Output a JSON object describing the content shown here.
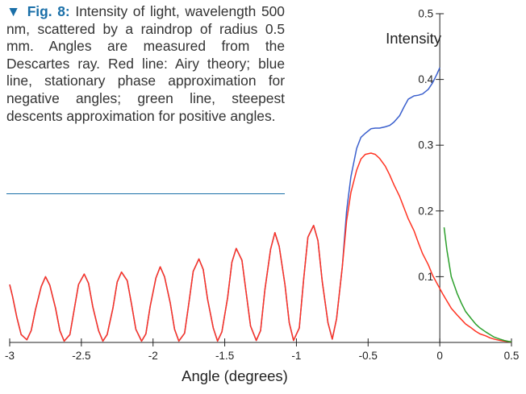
{
  "caption": {
    "marker": "▼",
    "figure_label": "Fig. 8:",
    "text": "Intensity of light, wavelength 500 nm, scattered by a raindrop of radius 0.5 mm. Angles are measured from the Descartes ray. Red line: Airy theory; blue line, stationary phase approximation for negative angles; green line, steepest descents approximation for positive angles."
  },
  "chart_data": {
    "type": "line",
    "title": "",
    "xlabel": "Angle (degrees)",
    "ylabel": "Intensity",
    "xlim": [
      -3,
      0.5
    ],
    "ylim": [
      0,
      0.5
    ],
    "x_ticks": [
      "-3",
      "-2.5",
      "-2",
      "-1.5",
      "-1",
      "-0.5",
      "0",
      "0.5"
    ],
    "y_ticks": [
      "0.1",
      "0.2",
      "0.3",
      "0.4",
      "0.5"
    ],
    "grid": false,
    "legend": "none",
    "series": [
      {
        "color": "#3a5fcd",
        "x": [
          -3.0,
          -2.98,
          -2.95,
          -2.92,
          -2.88,
          -2.85,
          -2.82,
          -2.78,
          -2.75,
          -2.72,
          -2.68,
          -2.65,
          -2.62,
          -2.58,
          -2.55,
          -2.52,
          -2.48,
          -2.45,
          -2.42,
          -2.38,
          -2.35,
          -2.32,
          -2.28,
          -2.25,
          -2.22,
          -2.18,
          -2.15,
          -2.12,
          -2.08,
          -2.05,
          -2.02,
          -1.98,
          -1.95,
          -1.92,
          -1.88,
          -1.85,
          -1.82,
          -1.78,
          -1.75,
          -1.72,
          -1.68,
          -1.65,
          -1.62,
          -1.58,
          -1.55,
          -1.52,
          -1.48,
          -1.45,
          -1.42,
          -1.38,
          -1.35,
          -1.32,
          -1.28,
          -1.25,
          -1.22,
          -1.18,
          -1.15,
          -1.12,
          -1.08,
          -1.05,
          -1.02,
          -0.98,
          -0.95,
          -0.92,
          -0.88,
          -0.85,
          -0.82,
          -0.78,
          -0.75,
          -0.72,
          -0.68,
          -0.65,
          -0.62,
          -0.58,
          -0.55,
          -0.52,
          -0.48,
          -0.45,
          -0.42,
          -0.38,
          -0.35,
          -0.32,
          -0.28,
          -0.25,
          -0.22,
          -0.18,
          -0.15,
          -0.12,
          -0.08,
          -0.05,
          -0.02,
          0.0
        ],
        "values": [
          0.088,
          0.07,
          0.038,
          0.012,
          0.004,
          0.018,
          0.05,
          0.085,
          0.1,
          0.087,
          0.052,
          0.018,
          0.002,
          0.012,
          0.05,
          0.088,
          0.104,
          0.09,
          0.054,
          0.018,
          0.002,
          0.012,
          0.052,
          0.092,
          0.107,
          0.094,
          0.058,
          0.02,
          0.002,
          0.013,
          0.055,
          0.098,
          0.115,
          0.1,
          0.06,
          0.02,
          0.002,
          0.014,
          0.06,
          0.108,
          0.127,
          0.111,
          0.066,
          0.022,
          0.002,
          0.016,
          0.068,
          0.122,
          0.143,
          0.125,
          0.075,
          0.025,
          0.003,
          0.018,
          0.08,
          0.142,
          0.167,
          0.146,
          0.088,
          0.03,
          0.003,
          0.022,
          0.095,
          0.16,
          0.178,
          0.155,
          0.093,
          0.03,
          0.005,
          0.036,
          0.115,
          0.2,
          0.252,
          0.295,
          0.312,
          0.318,
          0.325,
          0.326,
          0.326,
          0.328,
          0.33,
          0.335,
          0.345,
          0.358,
          0.37,
          0.375,
          0.376,
          0.378,
          0.385,
          0.395,
          0.408,
          0.418
        ]
      },
      {
        "color": "#ff3322",
        "x": [
          -3.0,
          -2.98,
          -2.95,
          -2.92,
          -2.88,
          -2.85,
          -2.82,
          -2.78,
          -2.75,
          -2.72,
          -2.68,
          -2.65,
          -2.62,
          -2.58,
          -2.55,
          -2.52,
          -2.48,
          -2.45,
          -2.42,
          -2.38,
          -2.35,
          -2.32,
          -2.28,
          -2.25,
          -2.22,
          -2.18,
          -2.15,
          -2.12,
          -2.08,
          -2.05,
          -2.02,
          -1.98,
          -1.95,
          -1.92,
          -1.88,
          -1.85,
          -1.82,
          -1.78,
          -1.75,
          -1.72,
          -1.68,
          -1.65,
          -1.62,
          -1.58,
          -1.55,
          -1.52,
          -1.48,
          -1.45,
          -1.42,
          -1.38,
          -1.35,
          -1.32,
          -1.28,
          -1.25,
          -1.22,
          -1.18,
          -1.15,
          -1.12,
          -1.08,
          -1.05,
          -1.02,
          -0.98,
          -0.95,
          -0.92,
          -0.88,
          -0.85,
          -0.82,
          -0.78,
          -0.75,
          -0.72,
          -0.68,
          -0.65,
          -0.62,
          -0.58,
          -0.55,
          -0.52,
          -0.48,
          -0.45,
          -0.42,
          -0.38,
          -0.35,
          -0.32,
          -0.28,
          -0.25,
          -0.22,
          -0.18,
          -0.15,
          -0.12,
          -0.08,
          -0.05,
          -0.02,
          0.02,
          0.05,
          0.08,
          0.12,
          0.15,
          0.18,
          0.22,
          0.25,
          0.28,
          0.32,
          0.35,
          0.38,
          0.42,
          0.45,
          0.48,
          0.5
        ],
        "values": [
          0.088,
          0.07,
          0.038,
          0.012,
          0.004,
          0.018,
          0.05,
          0.085,
          0.1,
          0.087,
          0.052,
          0.018,
          0.002,
          0.012,
          0.05,
          0.088,
          0.104,
          0.09,
          0.054,
          0.018,
          0.002,
          0.012,
          0.052,
          0.092,
          0.107,
          0.094,
          0.058,
          0.02,
          0.002,
          0.013,
          0.055,
          0.098,
          0.115,
          0.1,
          0.06,
          0.02,
          0.002,
          0.014,
          0.06,
          0.108,
          0.127,
          0.111,
          0.066,
          0.022,
          0.002,
          0.016,
          0.068,
          0.122,
          0.143,
          0.125,
          0.075,
          0.025,
          0.003,
          0.018,
          0.08,
          0.142,
          0.167,
          0.146,
          0.088,
          0.03,
          0.003,
          0.022,
          0.095,
          0.16,
          0.178,
          0.155,
          0.093,
          0.03,
          0.005,
          0.036,
          0.115,
          0.185,
          0.228,
          0.262,
          0.279,
          0.286,
          0.288,
          0.286,
          0.28,
          0.268,
          0.255,
          0.24,
          0.222,
          0.205,
          0.188,
          0.17,
          0.152,
          0.135,
          0.118,
          0.102,
          0.09,
          0.074,
          0.063,
          0.052,
          0.042,
          0.035,
          0.028,
          0.022,
          0.017,
          0.013,
          0.01,
          0.007,
          0.005,
          0.003,
          0.002,
          0.0012,
          0.0008
        ]
      },
      {
        "color": "#2ca02c",
        "x": [
          0.03,
          0.05,
          0.08,
          0.12,
          0.15,
          0.18,
          0.22,
          0.25,
          0.28,
          0.32,
          0.35,
          0.38,
          0.42,
          0.45,
          0.48,
          0.5
        ],
        "values": [
          0.175,
          0.14,
          0.1,
          0.075,
          0.06,
          0.047,
          0.036,
          0.028,
          0.022,
          0.016,
          0.012,
          0.008,
          0.005,
          0.003,
          0.0015,
          0.001
        ]
      }
    ]
  }
}
